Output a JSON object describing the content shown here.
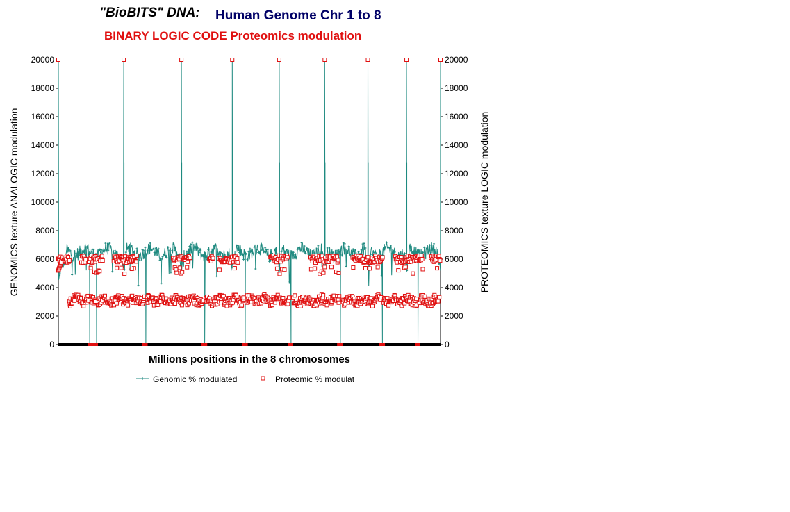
{
  "title": {
    "part1": "\"BioBITS\" DNA:",
    "part2": "Human Genome Chr 1 to 8",
    "subtitle": "BINARY LOGIC CODE Proteomics modulation"
  },
  "chart_data": {
    "type": "line",
    "xlabel": "Millions positions in the 8 chromosomes",
    "ylabel_left": "GENOMICS texture ANALOGIC modulation",
    "ylabel_right": "PROTEOMICS texture LOGIC modulation",
    "ylim": [
      0,
      20000
    ],
    "yticks": [
      "0",
      "2000",
      "4000",
      "6000",
      "8000",
      "10000",
      "12000",
      "14000",
      "16000",
      "18000",
      "20000"
    ],
    "xlim": [
      0,
      1000
    ],
    "chromosome_boundaries": [
      0,
      171,
      322,
      455,
      578,
      697,
      810,
      911,
      1000
    ],
    "series": [
      {
        "name": "Genomic % modulated",
        "color": "#1f8a80",
        "marker": "plus",
        "description_levels": {
          "baseline": 6500,
          "range": [
            4500,
            7300
          ]
        },
        "spikes_high": [
          {
            "x": 0,
            "y": 20000
          },
          {
            "x": 171,
            "y": 20000
          },
          {
            "x": 322,
            "y": 20000
          },
          {
            "x": 455,
            "y": 20000
          },
          {
            "x": 578,
            "y": 20000
          },
          {
            "x": 697,
            "y": 20000
          },
          {
            "x": 810,
            "y": 20000
          },
          {
            "x": 911,
            "y": 20000
          },
          {
            "x": 1000,
            "y": 20000
          }
        ],
        "spikes_low": [
          {
            "x": 82,
            "y": 0
          },
          {
            "x": 100,
            "y": 0
          },
          {
            "x": 229,
            "y": 0
          },
          {
            "x": 383,
            "y": 0
          },
          {
            "x": 489,
            "y": 0
          },
          {
            "x": 609,
            "y": 0
          },
          {
            "x": 738,
            "y": 0
          },
          {
            "x": 848,
            "y": 0
          },
          {
            "x": 941,
            "y": 0
          }
        ]
      },
      {
        "name": "Proteomic % modulat",
        "color": "#e01010",
        "marker": "square",
        "levels": {
          "high": 6000,
          "low": 3100
        }
      }
    ],
    "legend_position": "bottom"
  }
}
